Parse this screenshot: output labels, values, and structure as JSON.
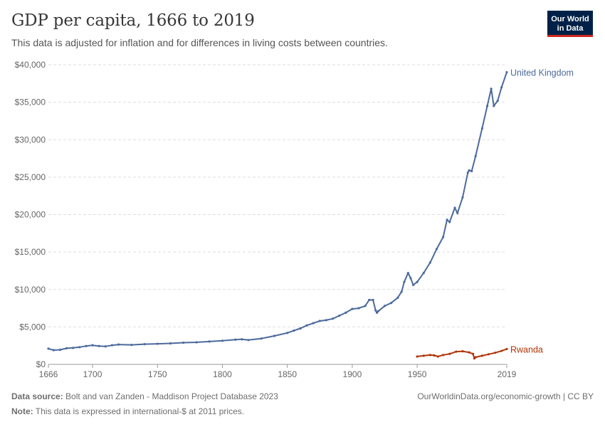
{
  "header": {
    "title": "GDP per capita, 1666 to 2019",
    "subtitle": "This data is adjusted for inflation and for differences in living costs between countries.",
    "logo_line1": "Our World",
    "logo_line2": "in Data"
  },
  "footer": {
    "source_label": "Data source:",
    "source_text": "Bolt and van Zanden - Maddison Project Database 2023",
    "note_label": "Note:",
    "note_text": "This data is expressed in international-$ at 2011 prices.",
    "url": "OurWorldinData.org/economic-growth | CC BY"
  },
  "chart_data": {
    "type": "line",
    "title": "GDP per capita, 1666 to 2019",
    "xlim": [
      1666,
      2019
    ],
    "ylim": [
      0,
      40000
    ],
    "x_ticks": [
      1666,
      1700,
      1750,
      1800,
      1850,
      1900,
      1950,
      2019
    ],
    "y_ticks": [
      0,
      5000,
      10000,
      15000,
      20000,
      25000,
      30000,
      35000,
      40000
    ],
    "y_tick_labels": [
      "$0",
      "$5,000",
      "$10,000",
      "$15,000",
      "$20,000",
      "$25,000",
      "$30,000",
      "$35,000",
      "$40,000"
    ],
    "grid": "horizontal dashed",
    "series": [
      {
        "name": "United Kingdom",
        "color": "#4c6a9c",
        "points": [
          [
            1666,
            2100
          ],
          [
            1670,
            1900
          ],
          [
            1675,
            1950
          ],
          [
            1680,
            2150
          ],
          [
            1685,
            2200
          ],
          [
            1690,
            2300
          ],
          [
            1695,
            2450
          ],
          [
            1700,
            2550
          ],
          [
            1705,
            2450
          ],
          [
            1710,
            2400
          ],
          [
            1715,
            2550
          ],
          [
            1720,
            2650
          ],
          [
            1730,
            2600
          ],
          [
            1740,
            2700
          ],
          [
            1750,
            2750
          ],
          [
            1760,
            2800
          ],
          [
            1770,
            2900
          ],
          [
            1780,
            2950
          ],
          [
            1790,
            3050
          ],
          [
            1800,
            3150
          ],
          [
            1810,
            3300
          ],
          [
            1815,
            3350
          ],
          [
            1820,
            3250
          ],
          [
            1830,
            3450
          ],
          [
            1840,
            3800
          ],
          [
            1850,
            4200
          ],
          [
            1855,
            4500
          ],
          [
            1860,
            4800
          ],
          [
            1865,
            5200
          ],
          [
            1870,
            5500
          ],
          [
            1875,
            5800
          ],
          [
            1880,
            5900
          ],
          [
            1885,
            6100
          ],
          [
            1890,
            6500
          ],
          [
            1895,
            6900
          ],
          [
            1900,
            7400
          ],
          [
            1905,
            7500
          ],
          [
            1910,
            7800
          ],
          [
            1913,
            8600
          ],
          [
            1916,
            8600
          ],
          [
            1918,
            7200
          ],
          [
            1919,
            6900
          ],
          [
            1920,
            7100
          ],
          [
            1925,
            7800
          ],
          [
            1930,
            8200
          ],
          [
            1935,
            8900
          ],
          [
            1938,
            9700
          ],
          [
            1940,
            11000
          ],
          [
            1943,
            12200
          ],
          [
            1945,
            11500
          ],
          [
            1947,
            10600
          ],
          [
            1950,
            11000
          ],
          [
            1955,
            12200
          ],
          [
            1960,
            13600
          ],
          [
            1965,
            15400
          ],
          [
            1970,
            17000
          ],
          [
            1973,
            19300
          ],
          [
            1975,
            19000
          ],
          [
            1979,
            20900
          ],
          [
            1981,
            20200
          ],
          [
            1985,
            22300
          ],
          [
            1989,
            25600
          ],
          [
            1990,
            25900
          ],
          [
            1992,
            25800
          ],
          [
            1995,
            27800
          ],
          [
            2000,
            31500
          ],
          [
            2004,
            34500
          ],
          [
            2007,
            36800
          ],
          [
            2009,
            34500
          ],
          [
            2012,
            35200
          ],
          [
            2015,
            37000
          ],
          [
            2019,
            39000
          ]
        ]
      },
      {
        "name": "Rwanda",
        "color": "#b13507",
        "points": [
          [
            1950,
            1050
          ],
          [
            1955,
            1150
          ],
          [
            1960,
            1250
          ],
          [
            1963,
            1200
          ],
          [
            1966,
            1050
          ],
          [
            1970,
            1250
          ],
          [
            1975,
            1400
          ],
          [
            1980,
            1700
          ],
          [
            1985,
            1750
          ],
          [
            1990,
            1600
          ],
          [
            1993,
            1400
          ],
          [
            1994,
            800
          ],
          [
            1995,
            950
          ],
          [
            2000,
            1150
          ],
          [
            2005,
            1350
          ],
          [
            2010,
            1550
          ],
          [
            2015,
            1800
          ],
          [
            2019,
            2050
          ]
        ]
      }
    ]
  }
}
